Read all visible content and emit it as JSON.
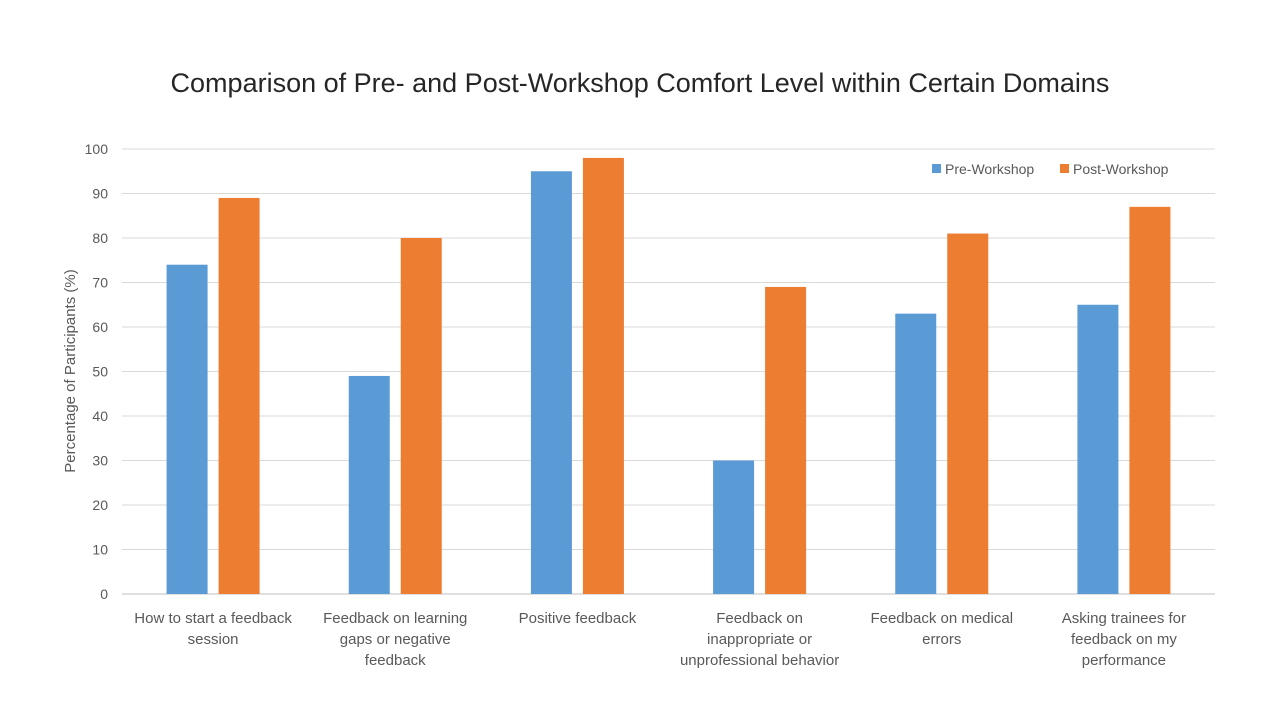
{
  "chart_data": {
    "type": "bar",
    "title": "Comparison of Pre- and Post-Workshop Comfort Level within Certain Domains",
    "xlabel": "",
    "ylabel": "Percentage of Participants (%)",
    "ylim": [
      0,
      100
    ],
    "yticks": [
      0,
      10,
      20,
      30,
      40,
      50,
      60,
      70,
      80,
      90,
      100
    ],
    "grid": true,
    "legend_position": "top-right",
    "categories": [
      [
        "How to start a feedback",
        "session"
      ],
      [
        "Feedback on learning",
        "gaps or negative",
        "feedback"
      ],
      [
        "Positive feedback"
      ],
      [
        "Feedback on",
        "inappropriate or",
        "unprofessional behavior"
      ],
      [
        "Feedback on medical",
        "errors"
      ],
      [
        "Asking trainees for",
        "feedback on my",
        "performance"
      ]
    ],
    "series": [
      {
        "name": "Pre-Workshop",
        "color": "#5b9bd5",
        "values": [
          74,
          49,
          95,
          30,
          63,
          65
        ]
      },
      {
        "name": "Post-Workshop",
        "color": "#ed7d31",
        "values": [
          89,
          80,
          98,
          69,
          81,
          87
        ]
      }
    ]
  }
}
